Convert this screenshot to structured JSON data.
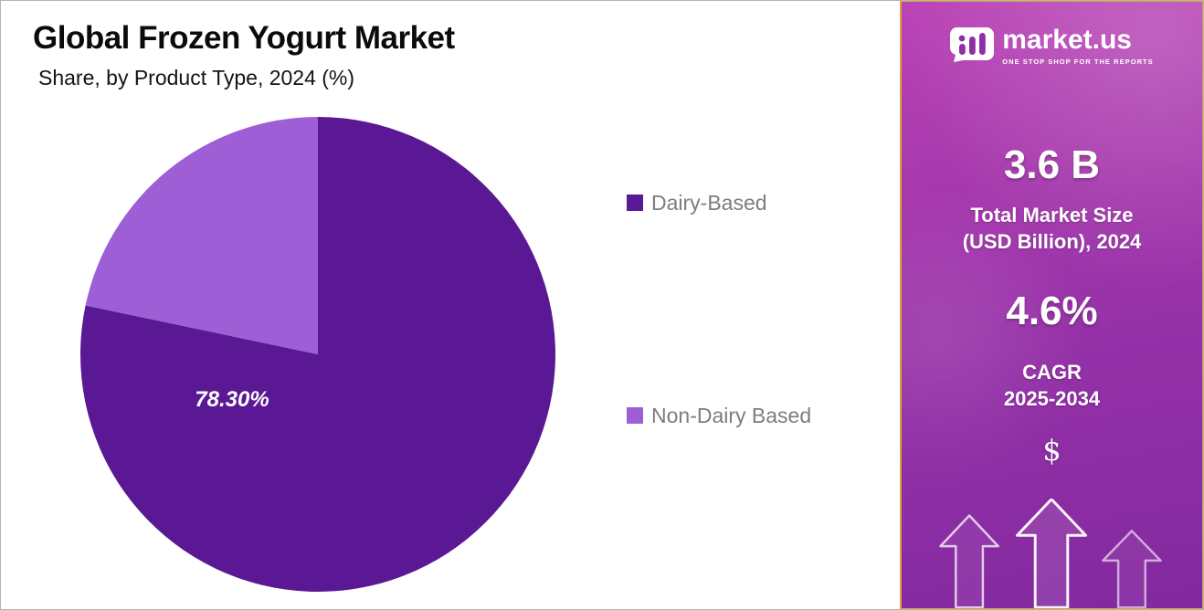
{
  "header": {
    "title": "Global Frozen Yogurt Market",
    "subtitle": "Share, by Product Type, 2024 (%)"
  },
  "chart_data": {
    "type": "pie",
    "title": "Global Frozen Yogurt Market",
    "subtitle": "Share, by Product Type, 2024 (%)",
    "categories": [
      "Dairy-Based",
      "Non-Dairy Based"
    ],
    "values": [
      78.3,
      21.7
    ],
    "colors": [
      "#5b1895",
      "#9e5ed6"
    ],
    "slice_labels": [
      "78.30%",
      ""
    ],
    "legend_position": "right",
    "start_angle_deg": 0,
    "direction": "clockwise"
  },
  "legend": {
    "items": [
      {
        "label": "Dairy-Based",
        "color": "#5b1895"
      },
      {
        "label": "Non-Dairy Based",
        "color": "#9e5ed6"
      }
    ]
  },
  "sidebar": {
    "logo_text": "market.us",
    "logo_tagline": "ONE STOP SHOP FOR THE REPORTS",
    "market_size_value": "3.6 B",
    "market_size_label_line1": "Total Market Size",
    "market_size_label_line2": "(USD Billion), 2024",
    "cagr_value": "4.6%",
    "cagr_label_line1": "CAGR",
    "cagr_label_line2": "2025-2034",
    "dollar_symbol": "$",
    "accent_border_color": "#d8a437"
  }
}
